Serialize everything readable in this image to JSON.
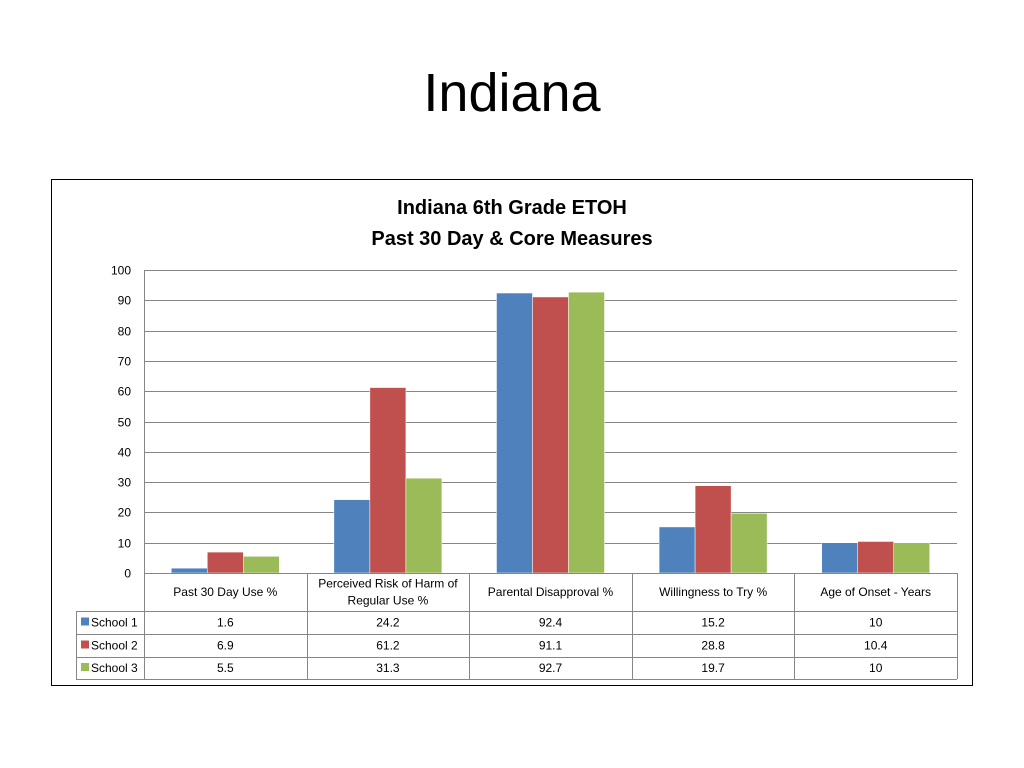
{
  "slide": {
    "title": "Indiana"
  },
  "chart_data": {
    "type": "bar",
    "title": "Indiana 6th Grade ETOH",
    "subtitle": "Past 30 Day & Core Measures",
    "categories": [
      "Past 30 Day Use %",
      "Perceived Risk of Harm of Regular Use %",
      "Parental Disapproval %",
      "Willingness to Try %",
      "Age of Onset - Years"
    ],
    "category_lines": [
      [
        "Past 30 Day Use %"
      ],
      [
        "Perceived Risk of Harm of",
        "Regular Use %"
      ],
      [
        "Parental Disapproval %"
      ],
      [
        "Willingness to Try %"
      ],
      [
        "Age of Onset - Years"
      ]
    ],
    "series": [
      {
        "name": "School 1",
        "color": "#4F81BD",
        "values": [
          1.6,
          24.2,
          92.4,
          15.2,
          10
        ]
      },
      {
        "name": "School 2",
        "color": "#C0504D",
        "values": [
          6.9,
          61.2,
          91.1,
          28.8,
          10.4
        ]
      },
      {
        "name": "School 3",
        "color": "#9BBB59",
        "values": [
          5.5,
          31.3,
          92.7,
          19.7,
          10
        ]
      }
    ],
    "ylim": [
      0,
      100
    ],
    "yticks": [
      0,
      10,
      20,
      30,
      40,
      50,
      60,
      70,
      80,
      90,
      100
    ],
    "grid": true,
    "legend": "data-table"
  }
}
